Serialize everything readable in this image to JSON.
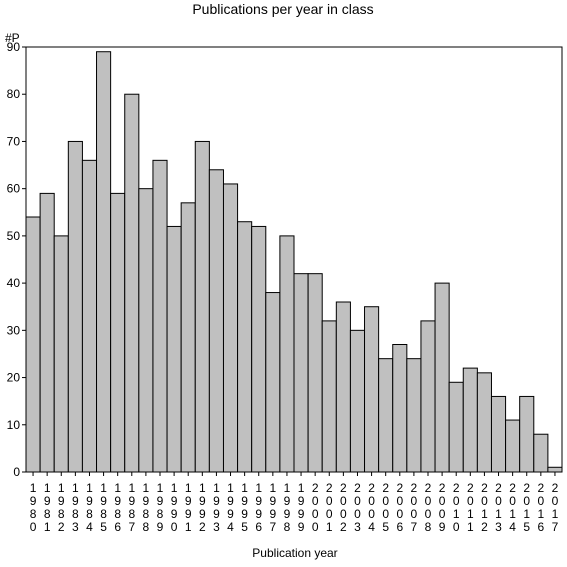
{
  "chart_data": {
    "type": "bar",
    "title": "Publications per year in class",
    "ylabel": "#P",
    "xlabel": "Publication year",
    "ylim": [
      0,
      90
    ],
    "yticks": [
      0,
      10,
      20,
      30,
      40,
      50,
      60,
      70,
      80,
      90
    ],
    "grid": false,
    "legend": "none",
    "categories": [
      "1980",
      "1981",
      "1982",
      "1983",
      "1984",
      "1985",
      "1986",
      "1987",
      "1988",
      "1989",
      "1990",
      "1991",
      "1992",
      "1993",
      "1994",
      "1995",
      "1996",
      "1997",
      "1998",
      "1999",
      "2000",
      "2001",
      "2002",
      "2003",
      "2004",
      "2005",
      "2006",
      "2007",
      "2008",
      "2009",
      "2010",
      "2011",
      "2012",
      "2013",
      "2014",
      "2015",
      "2016",
      "2017"
    ],
    "values": [
      54,
      59,
      50,
      70,
      66,
      89,
      59,
      80,
      60,
      66,
      52,
      57,
      70,
      64,
      61,
      53,
      52,
      38,
      50,
      42,
      42,
      32,
      36,
      30,
      35,
      24,
      27,
      24,
      32,
      40,
      19,
      22,
      21,
      16,
      11,
      16,
      8,
      1
    ],
    "colors": {
      "bar_fill": "#c0c0c0",
      "bar_stroke": "#000000"
    }
  }
}
